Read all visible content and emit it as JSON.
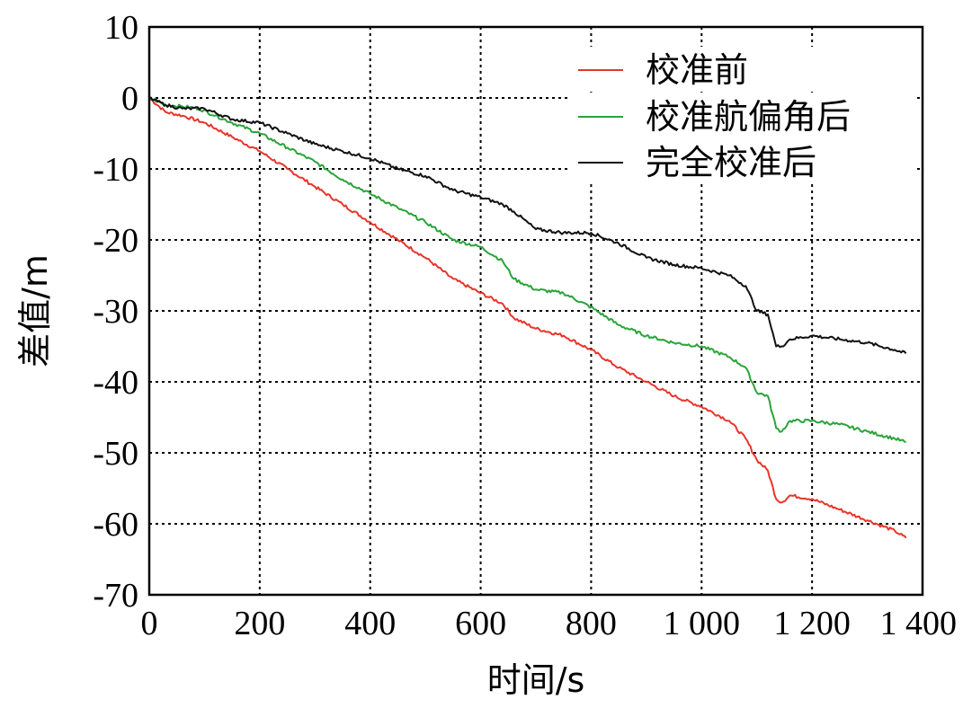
{
  "chart_data": {
    "type": "line",
    "title": "",
    "xlabel": "时间/s",
    "ylabel": "差值/m",
    "xlim": [
      0,
      1400
    ],
    "ylim": [
      -70,
      10
    ],
    "xticks": [
      {
        "value": 0,
        "label": "0"
      },
      {
        "value": 200,
        "label": "200"
      },
      {
        "value": 400,
        "label": "400"
      },
      {
        "value": 600,
        "label": "600"
      },
      {
        "value": 800,
        "label": "800"
      },
      {
        "value": 1000,
        "label": "1 000"
      },
      {
        "value": 1200,
        "label": "1 200"
      },
      {
        "value": 1400,
        "label": "1 400"
      }
    ],
    "yticks": [
      {
        "value": 10,
        "label": "10"
      },
      {
        "value": 0,
        "label": "0"
      },
      {
        "value": -10,
        "label": "-10"
      },
      {
        "value": -20,
        "label": "-20"
      },
      {
        "value": -30,
        "label": "-30"
      },
      {
        "value": -40,
        "label": "-40"
      },
      {
        "value": -50,
        "label": "-50"
      },
      {
        "value": -60,
        "label": "-60"
      },
      {
        "value": -70,
        "label": "-70"
      }
    ],
    "grid": true,
    "legend": "top-right",
    "series": [
      {
        "name": "校准前",
        "color": "#e8352b",
        "x": [
          0,
          30,
          60,
          100,
          150,
          200,
          250,
          300,
          350,
          400,
          450,
          500,
          550,
          600,
          640,
          660,
          700,
          750,
          800,
          850,
          900,
          950,
          1000,
          1050,
          1080,
          1100,
          1120,
          1135,
          1145,
          1160,
          1200,
          1250,
          1300,
          1350,
          1370
        ],
        "y": [
          0,
          -2,
          -2.5,
          -3.5,
          -5.5,
          -7.5,
          -10,
          -12.5,
          -15,
          -17.5,
          -20,
          -22.5,
          -25.5,
          -27.5,
          -29,
          -31,
          -32.5,
          -33.5,
          -35.5,
          -38,
          -40,
          -42,
          -43.5,
          -45.5,
          -48,
          -51,
          -52.5,
          -56.5,
          -57,
          -56,
          -56.5,
          -58,
          -59.5,
          -61,
          -62
        ]
      },
      {
        "name": "校准航偏角后",
        "color": "#2aa43a",
        "x": [
          0,
          30,
          60,
          90,
          120,
          150,
          200,
          250,
          300,
          350,
          400,
          450,
          500,
          550,
          600,
          640,
          660,
          700,
          750,
          800,
          850,
          900,
          950,
          1000,
          1050,
          1080,
          1100,
          1120,
          1135,
          1145,
          1160,
          1200,
          1250,
          1300,
          1350,
          1370
        ],
        "y": [
          0,
          -1,
          -1.2,
          -1.5,
          -2.5,
          -3.5,
          -5,
          -7,
          -9,
          -11.5,
          -13.5,
          -15.5,
          -17.5,
          -20,
          -21,
          -23,
          -25.5,
          -27,
          -27.5,
          -29.5,
          -32,
          -33.5,
          -34.5,
          -35,
          -36.5,
          -38,
          -41.5,
          -42,
          -46.5,
          -47,
          -45.5,
          -45.5,
          -46,
          -47,
          -48,
          -48.5
        ]
      },
      {
        "name": "完全校准后",
        "color": "#111111",
        "x": [
          0,
          30,
          60,
          100,
          150,
          200,
          250,
          300,
          350,
          400,
          450,
          500,
          550,
          600,
          640,
          660,
          700,
          750,
          800,
          850,
          900,
          950,
          1000,
          1050,
          1080,
          1100,
          1120,
          1135,
          1145,
          1160,
          1200,
          1250,
          1300,
          1350,
          1370
        ],
        "y": [
          0,
          -1,
          -1.5,
          -1.5,
          -3,
          -3.5,
          -5,
          -6.5,
          -7.5,
          -8.5,
          -10,
          -11,
          -13,
          -14,
          -15,
          -16,
          -18.5,
          -19,
          -19,
          -20.5,
          -22.5,
          -23.5,
          -24,
          -25,
          -26.5,
          -30,
          -30.5,
          -35,
          -35,
          -34,
          -33.5,
          -34,
          -34.5,
          -35.5,
          -36
        ]
      }
    ]
  }
}
